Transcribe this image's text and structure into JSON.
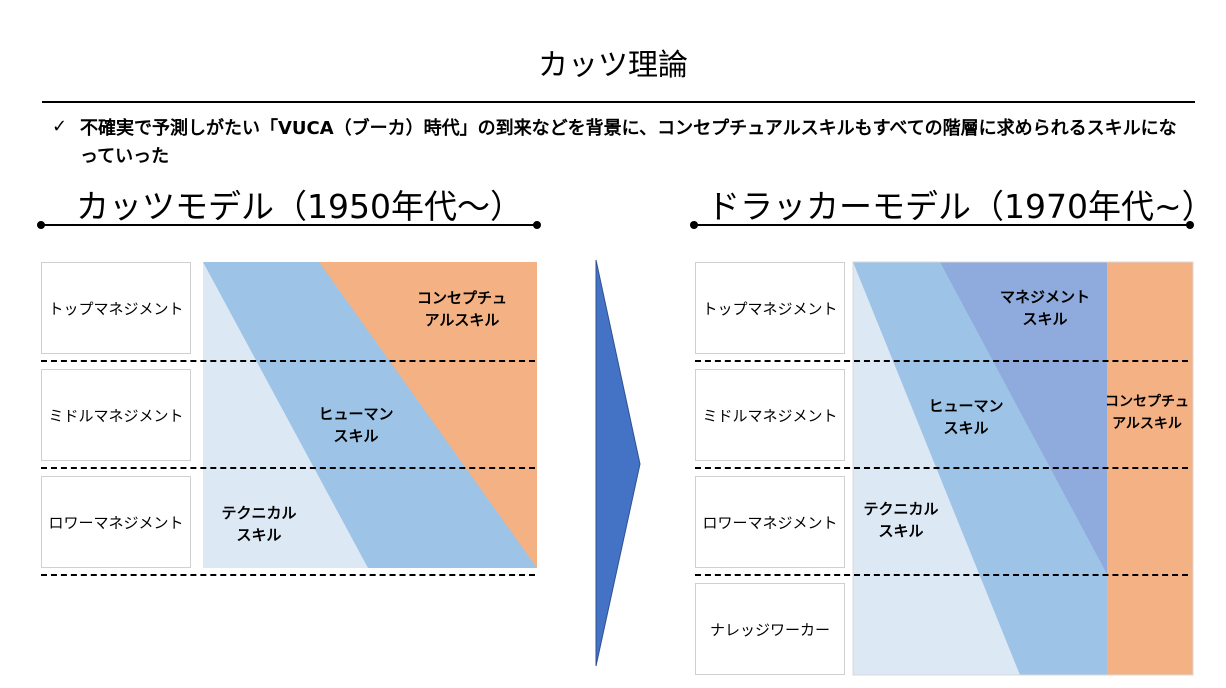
{
  "page": {
    "title": "カッツ理論",
    "bullet": "不確実で予測しがたい「VUCA（ブーカ）時代」の到来などを背景に、コンセプチュアルスキルもすべての階層に求められるスキルになっていった"
  },
  "katz": {
    "heading": "カッツモデル（1950年代～）",
    "levels": [
      "トップマネジメント",
      "ミドルマネジメント",
      "ロワーマネジメント"
    ],
    "skills": {
      "conceptual": "コンセプチュ\nアルスキル",
      "human": "ヒューマン\nスキル",
      "technical": "テクニカル\nスキル"
    }
  },
  "drucker": {
    "heading": "ドラッカーモデル（1970年代~）",
    "levels": [
      "トップマネジメント",
      "ミドルマネジメント",
      "ロワーマネジメント",
      "ナレッジワーカー"
    ],
    "skills": {
      "management": "マネジメント\nスキル",
      "human": "ヒューマン\nスキル",
      "technical": "テクニカル\nスキル",
      "conceptual": "コンセプチュ\nアルスキル"
    }
  },
  "colors": {
    "technical": "#dde8f5",
    "human": "#9dc3e6",
    "conceptual": "#f4b183",
    "management": "#8faadc",
    "arrow": "#4472c4"
  }
}
